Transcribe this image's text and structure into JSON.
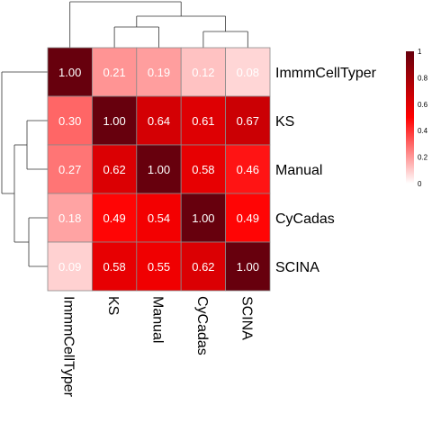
{
  "chart_data": {
    "type": "heatmap",
    "rows": [
      "ImmmCellTyper",
      "KS",
      "Manual",
      "CyCadas",
      "SCINA"
    ],
    "cols": [
      "ImmmCellTyper",
      "KS",
      "Manual",
      "CyCadas",
      "SCINA"
    ],
    "values": [
      [
        1.0,
        0.21,
        0.19,
        0.12,
        0.08
      ],
      [
        0.3,
        1.0,
        0.64,
        0.61,
        0.67
      ],
      [
        0.27,
        0.62,
        1.0,
        0.58,
        0.46
      ],
      [
        0.18,
        0.49,
        0.54,
        1.0,
        0.49
      ],
      [
        0.09,
        0.58,
        0.55,
        0.62,
        1.0
      ]
    ],
    "value_labels": [
      [
        "1.00",
        "0.21",
        "0.19",
        "0.12",
        "0.08"
      ],
      [
        "0.30",
        "1.00",
        "0.64",
        "0.61",
        "0.67"
      ],
      [
        "0.27",
        "0.62",
        "1.00",
        "0.58",
        "0.46"
      ],
      [
        "0.18",
        "0.49",
        "0.54",
        "1.00",
        "0.49"
      ],
      [
        "0.09",
        "0.58",
        "0.55",
        "0.62",
        "1.00"
      ]
    ],
    "color_scale": {
      "min": 0,
      "max": 1,
      "stops": [
        {
          "value": 0,
          "color": "#ffffff"
        },
        {
          "value": 0.5,
          "color": "#ff0000"
        },
        {
          "value": 1,
          "color": "#67000d"
        }
      ]
    },
    "legend": {
      "position": "top-right",
      "ticks": [
        "1",
        "0.8",
        "0.6",
        "0.4",
        "0.2",
        "0"
      ]
    },
    "row_dendrogram": true,
    "col_dendrogram": true
  }
}
